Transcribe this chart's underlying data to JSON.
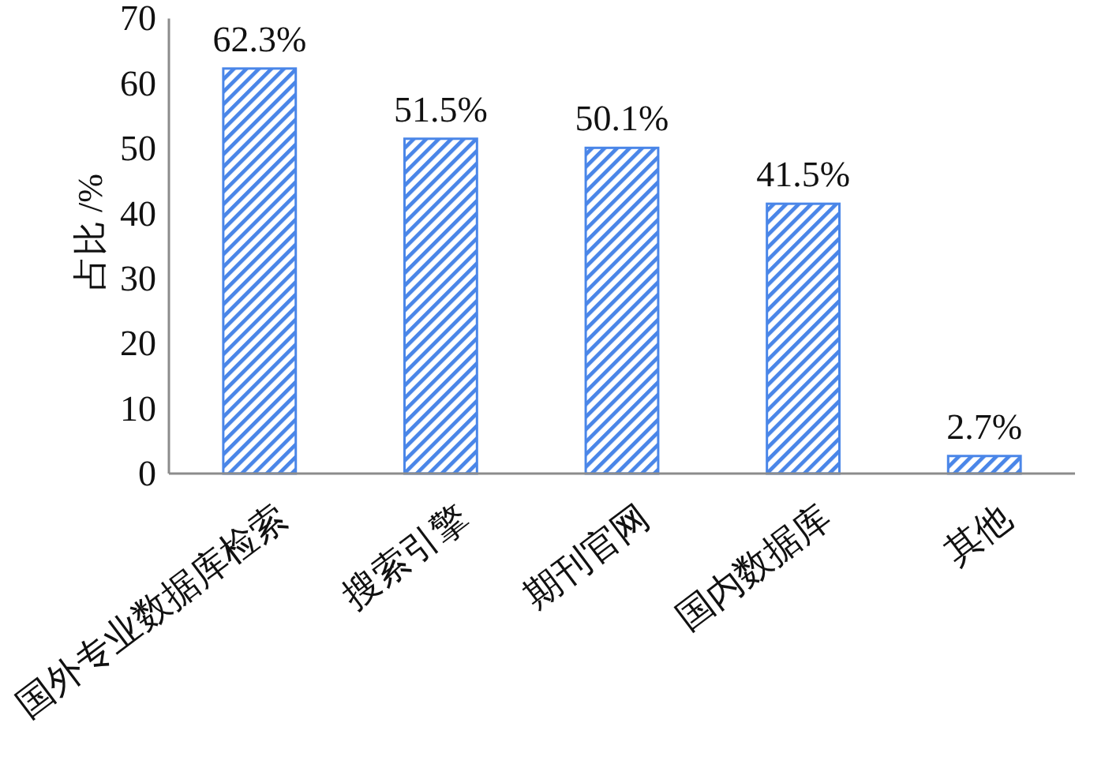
{
  "chart_data": {
    "type": "bar",
    "categories": [
      "国外专业数据库检索",
      "搜索引擎",
      "期刊官网",
      "国内数据库",
      "其他"
    ],
    "values": [
      62.3,
      51.5,
      50.1,
      41.5,
      2.7
    ],
    "value_labels": [
      "62.3%",
      "51.5%",
      "50.1%",
      "41.5%",
      "2.7%"
    ],
    "color": "#4a86e8",
    "ylabel": "占比 /%",
    "ylim": [
      0,
      70
    ],
    "yticks": [
      0,
      10,
      20,
      30,
      40,
      50,
      60,
      70
    ]
  }
}
